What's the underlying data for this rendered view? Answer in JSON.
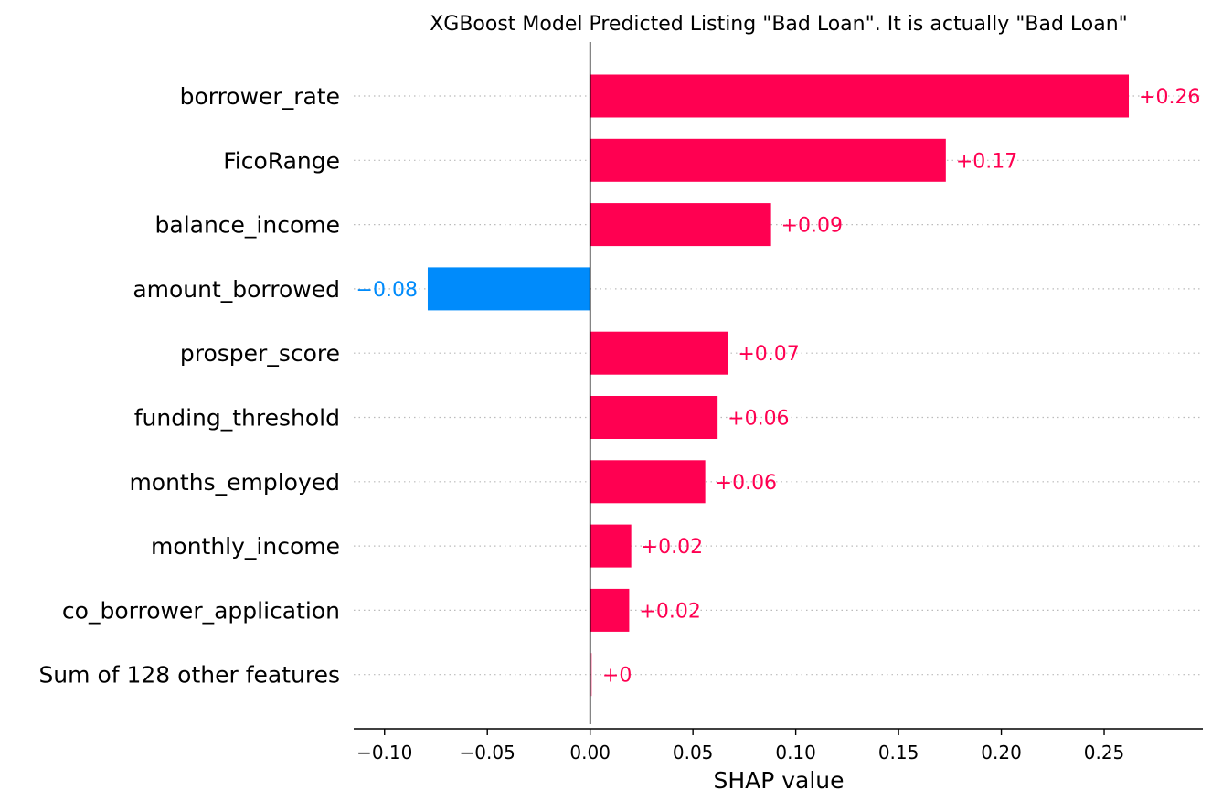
{
  "chart_data": {
    "type": "bar",
    "orientation": "horizontal",
    "title": "XGBoost Model Predicted Listing \"Bad Loan\". It is actually \"Bad Loan\"",
    "xlabel": "SHAP value",
    "ylabel": "",
    "xlim": [
      -0.115,
      0.298
    ],
    "xticks": [
      -0.1,
      -0.05,
      0.0,
      0.05,
      0.1,
      0.15,
      0.2,
      0.25
    ],
    "xtick_labels": [
      "−0.10",
      "−0.05",
      "0.00",
      "0.05",
      "0.10",
      "0.15",
      "0.20",
      "0.25"
    ],
    "categories": [
      "borrower_rate",
      "FicoRange",
      "balance_income",
      "amount_borrowed",
      "prosper_score",
      "funding_threshold",
      "months_employed",
      "monthly_income",
      "co_borrower_application",
      "Sum of 128 other features"
    ],
    "values": [
      0.262,
      0.173,
      0.088,
      -0.079,
      0.067,
      0.062,
      0.056,
      0.02,
      0.019,
      0.001
    ],
    "value_labels": [
      "+0.26",
      "+0.17",
      "+0.09",
      "−0.08",
      "+0.07",
      "+0.06",
      "+0.06",
      "+0.02",
      "+0.02",
      "+0"
    ],
    "colors": {
      "positive": "#ff0051",
      "negative": "#008bfb",
      "axis": "#000000",
      "grid_dots": "#bbbbbb"
    },
    "grid": "horizontal dotted guides",
    "legend": "none"
  }
}
